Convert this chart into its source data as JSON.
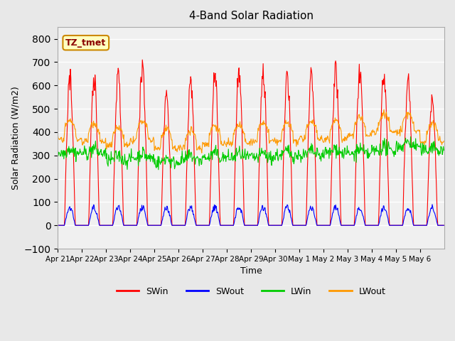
{
  "title": "4-Band Solar Radiation",
  "xlabel": "Time",
  "ylabel": "Solar Radiation (W/m2)",
  "ylim": [
    -100,
    850
  ],
  "yticks": [
    -100,
    0,
    100,
    200,
    300,
    400,
    500,
    600,
    700,
    800
  ],
  "label_tag": "TZ_tmet",
  "x_tick_labels": [
    "Apr 21",
    "Apr 22",
    "Apr 23",
    "Apr 24",
    "Apr 25",
    "Apr 26",
    "Apr 27",
    "Apr 28",
    "Apr 29",
    "Apr 30",
    "May 1",
    "May 2",
    "May 3",
    "May 4",
    "May 5",
    "May 6"
  ],
  "colors": {
    "SWin": "#ff0000",
    "SWout": "#0000ff",
    "LWin": "#00cc00",
    "LWout": "#ff9900"
  },
  "bg_color": "#e8e8e8",
  "plot_bg_color": "#f0f0f0",
  "n_days": 16,
  "pts_per_day": 48,
  "swin_peaks": [
    680,
    680,
    680,
    730,
    600,
    650,
    690,
    700,
    700,
    680,
    700,
    710,
    700,
    700,
    660,
    570
  ],
  "lwin_base": [
    310,
    310,
    280,
    290,
    270,
    280,
    290,
    290,
    290,
    300,
    300,
    310,
    305,
    320,
    340,
    320
  ],
  "lwout_base": [
    400,
    390,
    370,
    395,
    360,
    360,
    380,
    380,
    390,
    390,
    400,
    400,
    415,
    430,
    430,
    390
  ]
}
